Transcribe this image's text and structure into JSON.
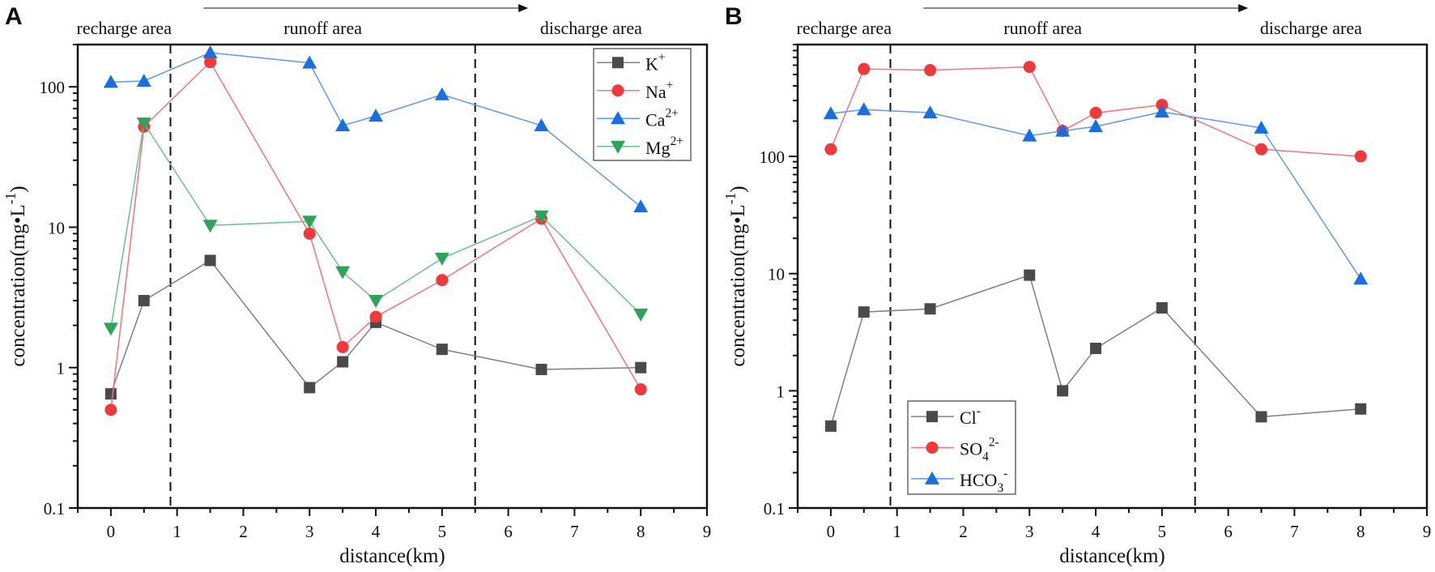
{
  "chart_data": [
    {
      "type": "line",
      "panel_label": "A",
      "xlabel": "distance(km)",
      "ylabel": {
        "base": "concentration(mg•L",
        "sup": "-1",
        "tail": ")"
      },
      "xlim": [
        -0.5,
        9
      ],
      "ylim": [
        0.1,
        200
      ],
      "yscale": "log",
      "xticks": [
        "0",
        "1",
        "2",
        "3",
        "4",
        "5",
        "6",
        "7",
        "8",
        "9"
      ],
      "yticks": [
        "0.1",
        "1",
        "10",
        "100"
      ],
      "zones": [
        "recharge area",
        "runoff area",
        "discharge area"
      ],
      "zone_boundaries": [
        0.9,
        5.5
      ],
      "flow_arrow": "left-to-right",
      "legend_position": "top-right",
      "x": [
        0,
        0.5,
        1.5,
        3,
        3.5,
        4,
        5,
        6.5,
        8
      ],
      "series": [
        {
          "name": "K+",
          "label": {
            "base": "K",
            "sup": "+"
          },
          "color": "#4a4a4a",
          "marker": "square",
          "values": [
            0.65,
            3.0,
            5.8,
            0.72,
            1.1,
            2.1,
            1.35,
            0.97,
            1.0
          ]
        },
        {
          "name": "Na+",
          "label": {
            "base": "Na",
            "sup": "+"
          },
          "color": "#f0393b",
          "marker": "circle",
          "values": [
            0.5,
            52,
            150,
            9.0,
            1.4,
            2.3,
            4.2,
            11.5,
            0.7
          ]
        },
        {
          "name": "Ca2+",
          "label": {
            "base": "Ca",
            "sup": "2+"
          },
          "color": "#1a6fe0",
          "marker": "triangle-up",
          "values": [
            108,
            110,
            175,
            148,
            53,
            62,
            88,
            53,
            14
          ]
        },
        {
          "name": "Mg2+",
          "label": {
            "base": "Mg",
            "sup": "2+"
          },
          "color": "#2ea35a",
          "marker": "triangle-down",
          "values": [
            1.9,
            55,
            10.3,
            11,
            4.8,
            3.0,
            6.0,
            12,
            2.4
          ]
        }
      ]
    },
    {
      "type": "line",
      "panel_label": "B",
      "xlabel": "distance(km)",
      "ylabel": {
        "base": "concentration(mg•L",
        "sup": "-1",
        "tail": ")"
      },
      "xlim": [
        -0.5,
        9
      ],
      "ylim": [
        0.1,
        900
      ],
      "yscale": "log",
      "xticks": [
        "0",
        "1",
        "2",
        "3",
        "4",
        "5",
        "6",
        "7",
        "8",
        "9"
      ],
      "yticks": [
        "0.1",
        "1",
        "10",
        "100"
      ],
      "zones": [
        "recharge area",
        "runoff area",
        "discharge area"
      ],
      "zone_boundaries": [
        0.9,
        5.5
      ],
      "flow_arrow": "left-to-right",
      "legend_position": "bottom-left",
      "x": [
        0,
        0.5,
        1.5,
        3,
        3.5,
        4,
        5,
        6.5,
        8
      ],
      "series": [
        {
          "name": "Cl-",
          "label": {
            "base": "Cl",
            "sup": "-"
          },
          "color": "#4a4a4a",
          "marker": "square",
          "values": [
            0.5,
            4.7,
            5.0,
            9.7,
            1.0,
            2.3,
            5.1,
            0.6,
            0.7
          ]
        },
        {
          "name": "SO42-",
          "label": {
            "base": "SO",
            "sub": "4",
            "sup": "2-"
          },
          "color": "#f0393b",
          "marker": "circle",
          "values": [
            115,
            557,
            545,
            580,
            165,
            235,
            275,
            115,
            100
          ]
        },
        {
          "name": "HCO3-",
          "label": {
            "base": "HCO",
            "sub": "3",
            "sup": "-"
          },
          "color": "#1a6fe0",
          "marker": "triangle-up",
          "values": [
            232,
            251,
            236,
            150,
            165,
            180,
            240,
            175,
            9
          ]
        }
      ]
    }
  ]
}
